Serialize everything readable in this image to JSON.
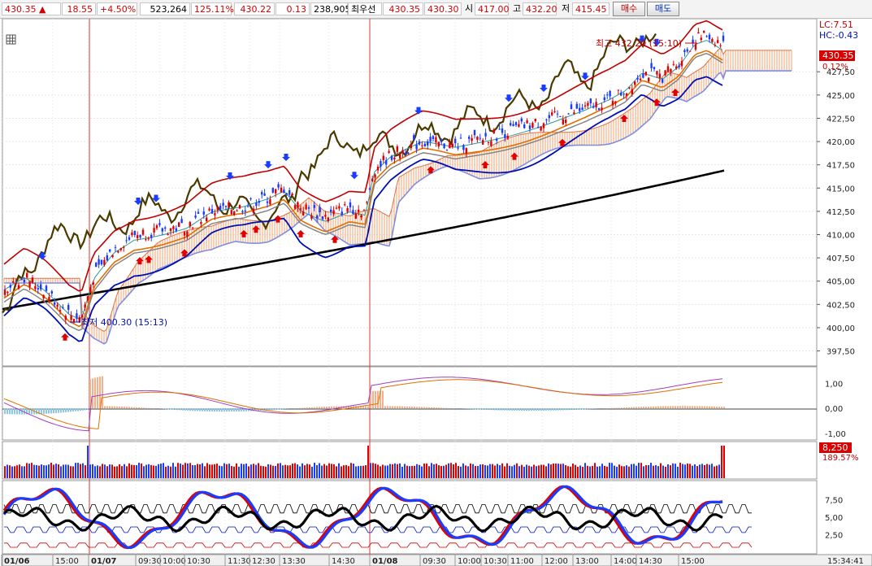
{
  "quote_bar": {
    "price": "430.35",
    "up_icon": "up-triangle-icon",
    "change": "18.55",
    "change_pct": "+4.50%",
    "volume": "523,264",
    "volume_ratio": "125.11%",
    "bid_price": "430.22",
    "bid_change": "0.13",
    "contracts": "238,905",
    "best_ask_label": "최우선",
    "best_ask": "430.35",
    "best_bid": "430.30",
    "open_label": "시",
    "open": "417.00",
    "high_label": "고",
    "high": "432.20",
    "low_label": "저",
    "low": "415.45",
    "buy_button": "매수",
    "sell_button": "매도"
  },
  "price_panel": {
    "y_ticks": [
      "427,50",
      "425,00",
      "422,50",
      "420,00",
      "417,50",
      "415,00",
      "412,50",
      "410,00",
      "407,50",
      "405,00",
      "402,50",
      "400,00",
      "397,50"
    ],
    "lc_label": "LC:7.51",
    "hc_label": "HC:-0.43",
    "current_price_tag": "430.35",
    "current_pct_tag": "0.12%",
    "high_annotation": "최고 432.20 (15:10)",
    "low_annotation": "최저 400.30 (15:13)",
    "settings_icon": "grid-icon"
  },
  "macd_panel": {
    "y_ticks": [
      "1,00",
      "0,00",
      "-1,00"
    ]
  },
  "volume_panel": {
    "value_tag": "8,250",
    "pct_tag": "189.57%"
  },
  "osc_panel": {
    "y_ticks": [
      "7,50",
      "5,00",
      "2,50"
    ]
  },
  "x_axis": {
    "labels": [
      "01/06",
      "15:00",
      "01/07",
      "09:30",
      "10:00",
      "10:30",
      "11:30",
      "12:30",
      "13:30",
      "14:30",
      "01/08",
      "09:30",
      "10:00",
      "10:30",
      "11:00",
      "12:00",
      "13:00",
      "14:00",
      "14:30",
      "15:00"
    ],
    "time": "15:34:41"
  },
  "colors": {
    "up": "#e00000",
    "down": "#1a3cff",
    "cloud": "#f2a070",
    "ma_long": "#000000",
    "lagging": "#4a3a00"
  },
  "chart_data": {
    "type": "candlestick",
    "price_ylim": [
      396.5,
      432.5
    ],
    "high": 432.2,
    "low": 400.3,
    "last": 430.35,
    "macd_ylim": [
      -1.2,
      1.6
    ],
    "osc_ylim": [
      0,
      10
    ]
  }
}
